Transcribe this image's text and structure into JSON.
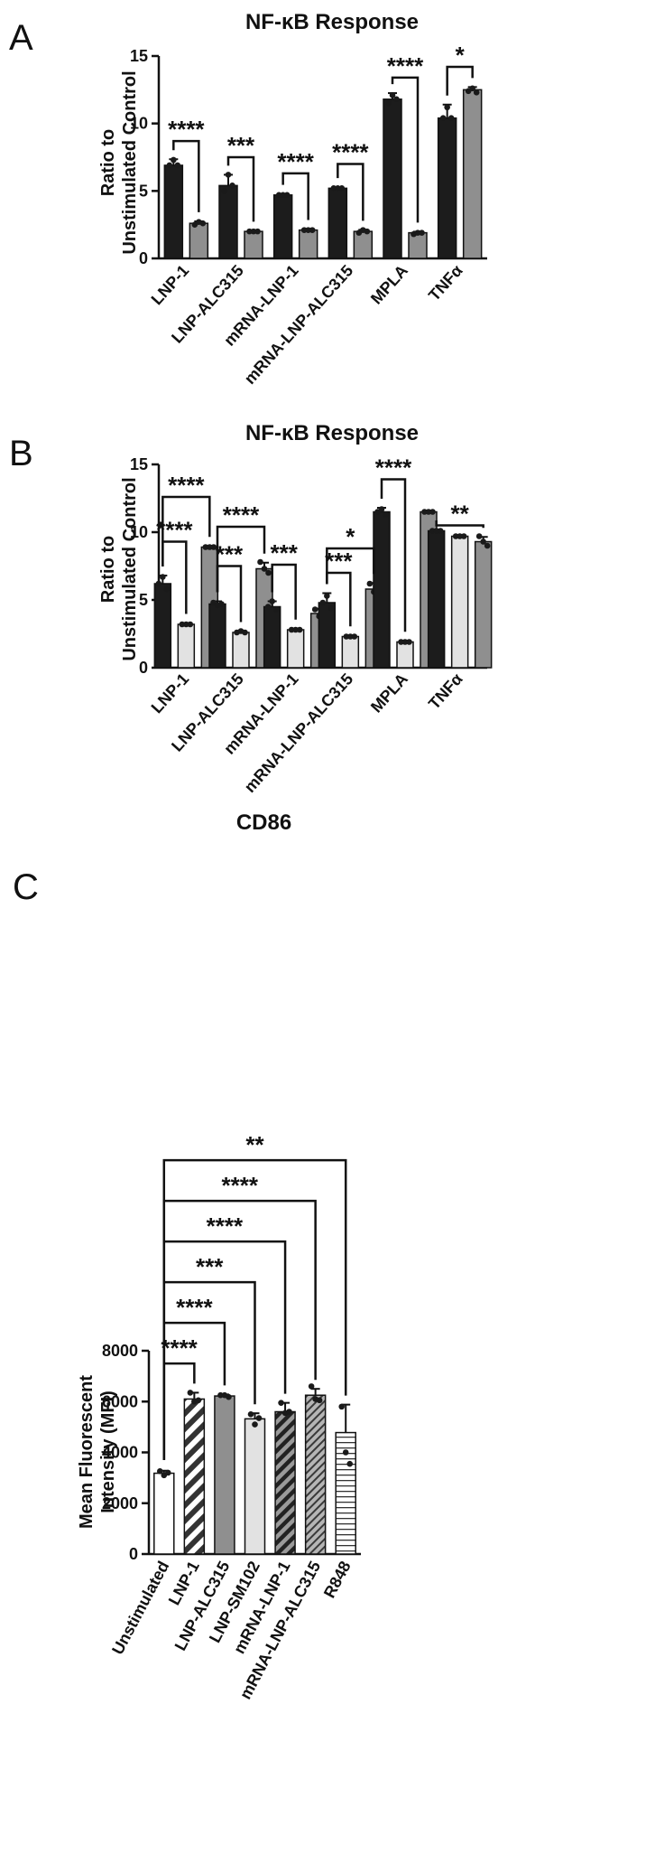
{
  "figure": {
    "panels": [
      "A",
      "B",
      "C"
    ]
  },
  "chart_data": [
    {
      "panel": "A",
      "type": "bar",
      "title": "NF-κB Response",
      "ylabel": [
        "Ratio to",
        "Unstimulated  Control"
      ],
      "ylim": [
        0,
        15
      ],
      "yticks": [
        "0",
        "5",
        "10",
        "15"
      ],
      "categories": [
        "LNP-1",
        "LNP-ALC315",
        "mRNA-LNP-1",
        "mRNA-LNP-ALC315",
        "MPLA",
        "TNFα"
      ],
      "series": [
        {
          "color": "#1c1c1c",
          "values": [
            6.9,
            5.4,
            4.7,
            5.2,
            11.8,
            10.4
          ],
          "err": [
            0.45,
            0.8,
            0.08,
            0.08,
            0.45,
            1.0
          ],
          "points": [
            [
              6.9,
              7.3,
              6.9
            ],
            [
              5.0,
              6.2,
              5.4
            ],
            [
              4.7,
              4.7,
              4.7
            ],
            [
              5.2,
              5.2,
              5.2
            ],
            [
              11.5,
              12.1,
              11.8
            ],
            [
              10.4,
              11.2,
              10.4
            ]
          ]
        },
        {
          "color": "#8f8f8f",
          "values": [
            2.6,
            2.0,
            2.1,
            2.0,
            1.9,
            12.5
          ],
          "err": [
            0.15,
            0.05,
            0.08,
            0.12,
            0.08,
            0.2
          ],
          "points": [
            [
              2.5,
              2.7,
              2.6
            ],
            [
              2.0,
              2.0,
              2.0
            ],
            [
              2.1,
              2.1,
              2.1
            ],
            [
              1.9,
              2.1,
              2.0
            ],
            [
              1.8,
              1.9,
              1.9
            ],
            [
              12.4,
              12.6,
              12.3
            ]
          ]
        }
      ],
      "significance": [
        {
          "category": 0,
          "from": 0,
          "to": 1,
          "label": "****",
          "y": 8.7
        },
        {
          "category": 1,
          "from": 0,
          "to": 1,
          "label": "***",
          "y": 7.5
        },
        {
          "category": 2,
          "from": 0,
          "to": 1,
          "label": "****",
          "y": 6.3
        },
        {
          "category": 3,
          "from": 0,
          "to": 1,
          "label": "****",
          "y": 7.0
        },
        {
          "category": 4,
          "from": 0,
          "to": 1,
          "label": "****",
          "y": 13.4
        },
        {
          "category": 5,
          "from": 0,
          "to": 1,
          "label": "*",
          "y": 14.2
        }
      ]
    },
    {
      "panel": "B",
      "type": "bar",
      "title": "NF-κB Response",
      "ylabel": [
        "Ratio to",
        "Unstimulated  Control"
      ],
      "ylim": [
        0,
        15
      ],
      "yticks": [
        "0",
        "5",
        "10",
        "15"
      ],
      "categories": [
        "LNP-1",
        "LNP-ALC315",
        "mRNA-LNP-1",
        "mRNA-LNP-ALC315",
        "MPLA",
        "TNFα"
      ],
      "series": [
        {
          "color": "#1c1c1c",
          "values": [
            6.2,
            4.7,
            4.5,
            4.8,
            11.5,
            10.1
          ],
          "err": [
            0.6,
            0.2,
            0.4,
            0.7,
            0.3,
            0.1
          ],
          "points": [
            [
              6.2,
              6.7,
              5.8
            ],
            [
              4.8,
              4.6,
              4.7
            ],
            [
              4.5,
              4.9,
              4.3
            ],
            [
              4.8,
              5.3,
              4.4
            ],
            [
              11.5,
              11.7,
              11.3
            ],
            [
              10.1,
              10.1,
              10.1
            ]
          ]
        },
        {
          "color": "#e2e2e2",
          "values": [
            3.2,
            2.6,
            2.8,
            2.3,
            1.9,
            9.7
          ],
          "err": [
            0.1,
            0.1,
            0.08,
            0.08,
            0.08,
            0.08
          ],
          "points": [
            [
              3.2,
              3.2,
              3.2
            ],
            [
              2.6,
              2.7,
              2.6
            ],
            [
              2.8,
              2.8,
              2.8
            ],
            [
              2.3,
              2.3,
              2.3
            ],
            [
              1.9,
              1.9,
              1.9
            ],
            [
              9.7,
              9.7,
              9.7
            ]
          ]
        },
        {
          "color": "#8f8f8f",
          "values": [
            8.9,
            7.3,
            4.0,
            5.8,
            11.5,
            9.3
          ],
          "err": [
            0.08,
            0.45,
            0.35,
            0.45,
            0.08,
            0.35
          ],
          "points": [
            [
              8.9,
              8.9,
              8.9
            ],
            [
              7.8,
              7.3,
              7.0
            ],
            [
              4.3,
              3.8,
              4.0
            ],
            [
              6.2,
              5.6,
              5.8
            ],
            [
              11.5,
              11.5,
              11.5
            ],
            [
              9.7,
              9.3,
              9.0
            ]
          ]
        }
      ],
      "significance": [
        {
          "category": 0,
          "from": 0,
          "to": 2,
          "label": "****",
          "y": 12.6
        },
        {
          "category": 0,
          "from": 0,
          "to": 1,
          "label": "****",
          "y": 9.3
        },
        {
          "category": 1,
          "from": 0,
          "to": 2,
          "label": "****",
          "y": 10.4
        },
        {
          "category": 1,
          "from": 0,
          "to": 1,
          "label": "***",
          "y": 7.5
        },
        {
          "category": 2,
          "from": 0,
          "to": 1,
          "label": "***",
          "y": 7.6
        },
        {
          "category": 3,
          "from": 0,
          "to": 2,
          "label": "*",
          "y": 8.8
        },
        {
          "category": 3,
          "from": 0,
          "to": 1,
          "label": "***",
          "y": 7.0
        },
        {
          "category": 4,
          "from": 0,
          "to": 1,
          "label": "****",
          "y": 13.9
        },
        {
          "category": 5,
          "from": 0,
          "to": 2,
          "label": "**",
          "y": 10.5
        }
      ]
    },
    {
      "panel": "C",
      "type": "bar",
      "title": "CD86",
      "ylabel": [
        "Mean Fluorescent",
        "Intensity  (MFI)"
      ],
      "ylim": [
        0,
        8000
      ],
      "yticks": [
        "0",
        "2000",
        "4000",
        "6000",
        "8000"
      ],
      "categories": [
        "Unstimulated",
        "LNP-1",
        "LNP-ALC315",
        "LNP-SM102",
        "mRNA-LNP-1",
        "mRNA-LNP-ALC315",
        "R848"
      ],
      "bars": [
        {
          "value": 3180,
          "err": 100,
          "fill": "#ffffff",
          "pattern": "none",
          "points": [
            3260,
            3100,
            3200
          ]
        },
        {
          "value": 6100,
          "err": 250,
          "fill": "#333333",
          "pattern": "diag-wide",
          "points": [
            6350,
            6000,
            6050
          ]
        },
        {
          "value": 6220,
          "err": 60,
          "fill": "#8f8f8f",
          "pattern": "none",
          "points": [
            6250,
            6250,
            6180
          ]
        },
        {
          "value": 5320,
          "err": 220,
          "fill": "#e2e2e2",
          "pattern": "none",
          "points": [
            5500,
            5100,
            5350
          ]
        },
        {
          "value": 5600,
          "err": 350,
          "fill": "#ffffff",
          "pattern": "diag-dark",
          "points": [
            5950,
            5550,
            5600
          ]
        },
        {
          "value": 6250,
          "err": 250,
          "fill": "#9b9b9b",
          "pattern": "diag-thin",
          "points": [
            6600,
            6100,
            6050
          ]
        },
        {
          "value": 4780,
          "err": 1100,
          "fill": "#ffffff",
          "pattern": "horiz",
          "points": [
            5800,
            4000,
            3550
          ]
        }
      ],
      "significance": [
        {
          "from": 0,
          "to": 1,
          "label": "****",
          "y": 7500
        },
        {
          "from": 0,
          "to": 2,
          "label": "****",
          "y": 9100
        },
        {
          "from": 0,
          "to": 3,
          "label": "***",
          "y": 10700
        },
        {
          "from": 0,
          "to": 4,
          "label": "****",
          "y": 12300
        },
        {
          "from": 0,
          "to": 5,
          "label": "****",
          "y": 13900
        },
        {
          "from": 0,
          "to": 6,
          "label": "**",
          "y": 15500
        }
      ]
    }
  ]
}
